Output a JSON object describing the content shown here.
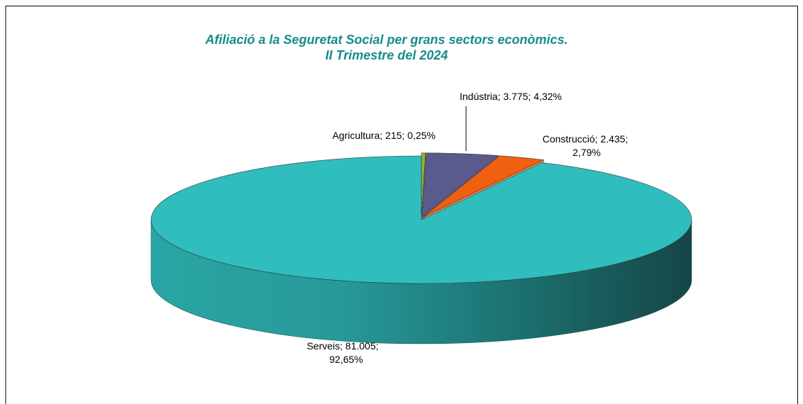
{
  "chart_data": {
    "type": "pie3d",
    "title": [
      "Afiliació a la Seguretat Social per grans sectors econòmics.",
      "II Trimestre del 2024"
    ],
    "categories": [
      "Agricultura",
      "Indústria",
      "Construcció",
      "Serveis"
    ],
    "values": [
      215,
      3775,
      2435,
      81005
    ],
    "value_labels": [
      "215",
      "3.775",
      "2.435",
      "81.005"
    ],
    "percents": [
      0.25,
      4.32,
      2.79,
      92.65
    ],
    "percent_labels": [
      "0,25%",
      "4,32%",
      "2,79%",
      "92,65%"
    ],
    "label_separator": "; ",
    "colors": [
      "#8fb339",
      "#5a5a8c",
      "#f06010",
      "#30bdbd"
    ]
  }
}
